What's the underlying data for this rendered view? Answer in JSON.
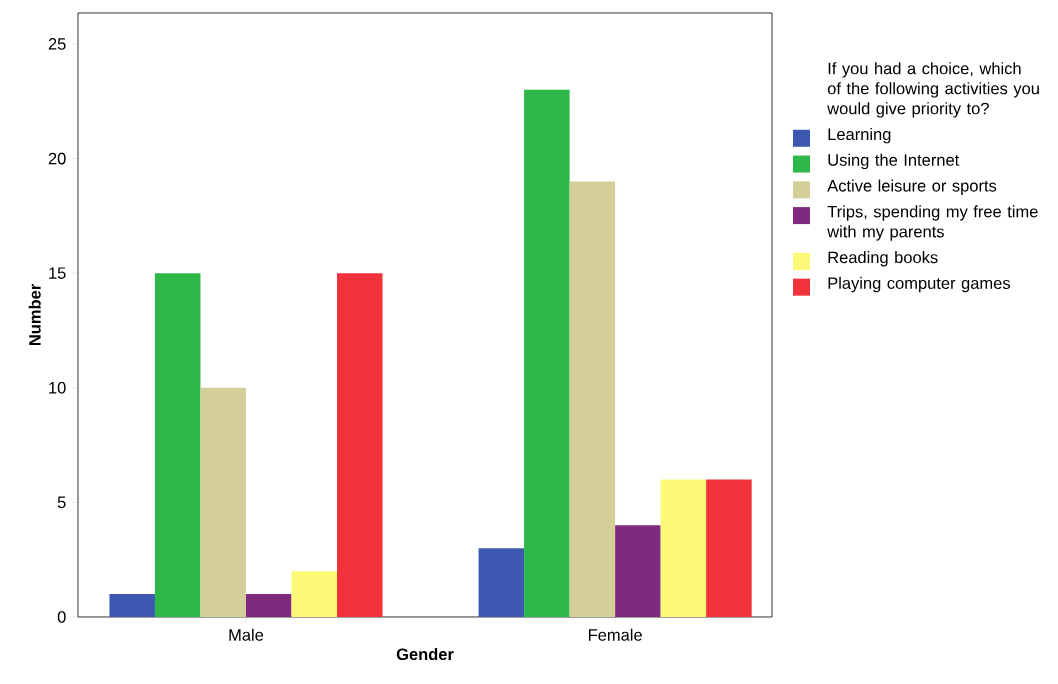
{
  "chart_data": {
    "type": "bar",
    "xlabel": "Gender",
    "ylabel": "Number",
    "legend_title": "If you had a choice, which of the following activities you would give priority to?",
    "categories": [
      "Male",
      "Female"
    ],
    "series": [
      {
        "name": "Learning",
        "color": "#3c58b0",
        "values": [
          1,
          3
        ]
      },
      {
        "name": "Using the Internet",
        "color": "#2eb84a",
        "values": [
          15,
          23
        ]
      },
      {
        "name": "Active leisure or sports",
        "color": "#d4cf98",
        "values": [
          10,
          19
        ]
      },
      {
        "name": "Trips, spending my free time with my parents",
        "color": "#7f2a7f",
        "values": [
          1,
          4
        ]
      },
      {
        "name": "Reading books",
        "color": "#fbf976",
        "values": [
          2,
          6
        ]
      },
      {
        "name": "Playing computer games",
        "color": "#f0333a",
        "values": [
          15,
          6
        ]
      }
    ],
    "ylim": [
      0,
      26.35
    ],
    "yticks": [
      0,
      5,
      10,
      15,
      20,
      25
    ],
    "grid": false,
    "legend": "right"
  }
}
